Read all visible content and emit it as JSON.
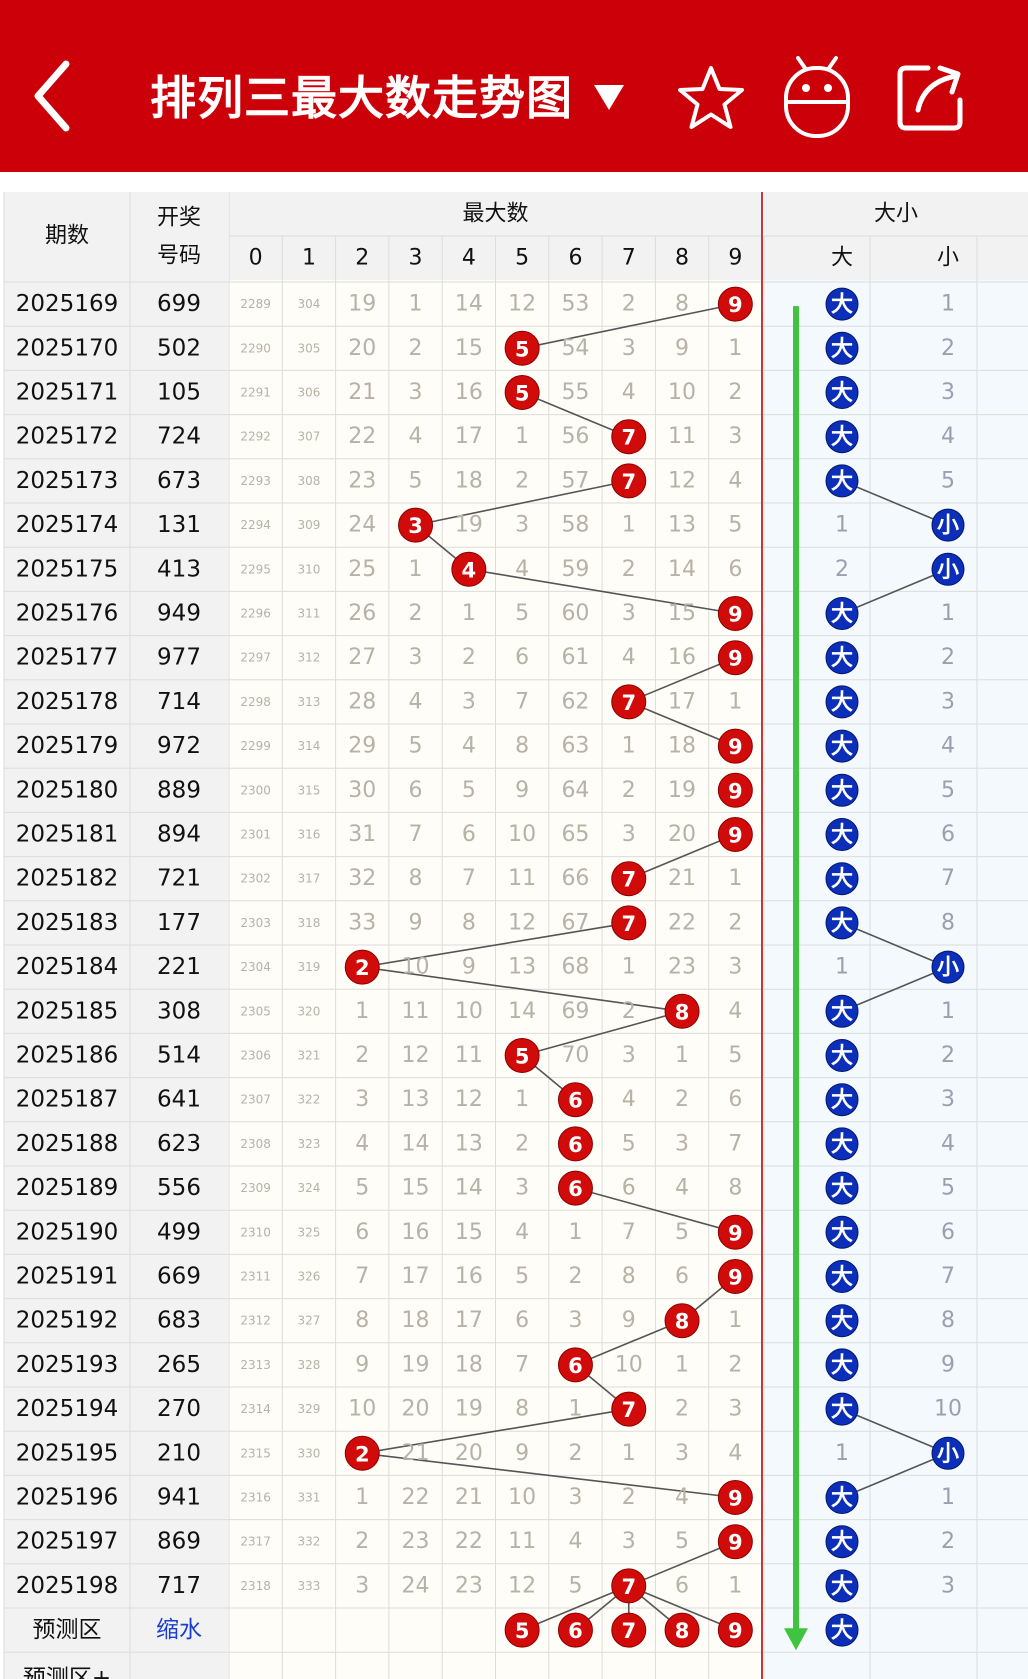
{
  "header": {
    "title": "排列三最大数走势图",
    "icons": [
      "back-arrow-icon",
      "dropdown-caret-icon",
      "star-icon",
      "robot-icon",
      "share-icon"
    ]
  },
  "table": {
    "headers": {
      "period": "期数",
      "draw_line1": "开奖",
      "draw_line2": "号码",
      "max_group": "最大数",
      "size_group": "大小",
      "digits": [
        "0",
        "1",
        "2",
        "3",
        "4",
        "5",
        "6",
        "7",
        "8",
        "9"
      ],
      "big": "大",
      "small": "小"
    },
    "rows": [
      {
        "period": "2025169",
        "draw": "699",
        "max": 9,
        "miss": [
          "2289",
          "304",
          "19",
          "1",
          "14",
          "12",
          "53",
          "2",
          "8",
          ""
        ],
        "size": "大",
        "small_miss": "1"
      },
      {
        "period": "2025170",
        "draw": "502",
        "max": 5,
        "miss": [
          "2290",
          "305",
          "20",
          "2",
          "15",
          "",
          "54",
          "3",
          "9",
          "1"
        ],
        "size": "大",
        "small_miss": "2"
      },
      {
        "period": "2025171",
        "draw": "105",
        "max": 5,
        "miss": [
          "2291",
          "306",
          "21",
          "3",
          "16",
          "",
          "55",
          "4",
          "10",
          "2"
        ],
        "size": "大",
        "small_miss": "3"
      },
      {
        "period": "2025172",
        "draw": "724",
        "max": 7,
        "miss": [
          "2292",
          "307",
          "22",
          "4",
          "17",
          "1",
          "56",
          "",
          "11",
          "3"
        ],
        "size": "大",
        "small_miss": "4"
      },
      {
        "period": "2025173",
        "draw": "673",
        "max": 7,
        "miss": [
          "2293",
          "308",
          "23",
          "5",
          "18",
          "2",
          "57",
          "",
          "12",
          "4"
        ],
        "size": "大",
        "small_miss": "5"
      },
      {
        "period": "2025174",
        "draw": "131",
        "max": 3,
        "miss": [
          "2294",
          "309",
          "24",
          "",
          "19",
          "3",
          "58",
          "1",
          "13",
          "5"
        ],
        "size": "小",
        "big_miss": "1"
      },
      {
        "period": "2025175",
        "draw": "413",
        "max": 4,
        "miss": [
          "2295",
          "310",
          "25",
          "1",
          "",
          "4",
          "59",
          "2",
          "14",
          "6"
        ],
        "size": "小",
        "big_miss": "2"
      },
      {
        "period": "2025176",
        "draw": "949",
        "max": 9,
        "miss": [
          "2296",
          "311",
          "26",
          "2",
          "1",
          "5",
          "60",
          "3",
          "15",
          ""
        ],
        "size": "大",
        "small_miss": "1"
      },
      {
        "period": "2025177",
        "draw": "977",
        "max": 9,
        "miss": [
          "2297",
          "312",
          "27",
          "3",
          "2",
          "6",
          "61",
          "4",
          "16",
          ""
        ],
        "size": "大",
        "small_miss": "2"
      },
      {
        "period": "2025178",
        "draw": "714",
        "max": 7,
        "miss": [
          "2298",
          "313",
          "28",
          "4",
          "3",
          "7",
          "62",
          "",
          "17",
          "1"
        ],
        "size": "大",
        "small_miss": "3"
      },
      {
        "period": "2025179",
        "draw": "972",
        "max": 9,
        "miss": [
          "2299",
          "314",
          "29",
          "5",
          "4",
          "8",
          "63",
          "1",
          "18",
          ""
        ],
        "size": "大",
        "small_miss": "4"
      },
      {
        "period": "2025180",
        "draw": "889",
        "max": 9,
        "miss": [
          "2300",
          "315",
          "30",
          "6",
          "5",
          "9",
          "64",
          "2",
          "19",
          ""
        ],
        "size": "大",
        "small_miss": "5"
      },
      {
        "period": "2025181",
        "draw": "894",
        "max": 9,
        "miss": [
          "2301",
          "316",
          "31",
          "7",
          "6",
          "10",
          "65",
          "3",
          "20",
          ""
        ],
        "size": "大",
        "small_miss": "6"
      },
      {
        "period": "2025182",
        "draw": "721",
        "max": 7,
        "miss": [
          "2302",
          "317",
          "32",
          "8",
          "7",
          "11",
          "66",
          "",
          "21",
          "1"
        ],
        "size": "大",
        "small_miss": "7"
      },
      {
        "period": "2025183",
        "draw": "177",
        "max": 7,
        "miss": [
          "2303",
          "318",
          "33",
          "9",
          "8",
          "12",
          "67",
          "",
          "22",
          "2"
        ],
        "size": "大",
        "small_miss": "8"
      },
      {
        "period": "2025184",
        "draw": "221",
        "max": 2,
        "miss": [
          "2304",
          "319",
          "",
          "10",
          "9",
          "13",
          "68",
          "1",
          "23",
          "3"
        ],
        "size": "小",
        "big_miss": "1"
      },
      {
        "period": "2025185",
        "draw": "308",
        "max": 8,
        "miss": [
          "2305",
          "320",
          "1",
          "11",
          "10",
          "14",
          "69",
          "2",
          "",
          "4"
        ],
        "size": "大",
        "small_miss": "1"
      },
      {
        "period": "2025186",
        "draw": "514",
        "max": 5,
        "miss": [
          "2306",
          "321",
          "2",
          "12",
          "11",
          "",
          "70",
          "3",
          "1",
          "5"
        ],
        "size": "大",
        "small_miss": "2"
      },
      {
        "period": "2025187",
        "draw": "641",
        "max": 6,
        "miss": [
          "2307",
          "322",
          "3",
          "13",
          "12",
          "1",
          "",
          "4",
          "2",
          "6"
        ],
        "size": "大",
        "small_miss": "3"
      },
      {
        "period": "2025188",
        "draw": "623",
        "max": 6,
        "miss": [
          "2308",
          "323",
          "4",
          "14",
          "13",
          "2",
          "",
          "5",
          "3",
          "7"
        ],
        "size": "大",
        "small_miss": "4"
      },
      {
        "period": "2025189",
        "draw": "556",
        "max": 6,
        "miss": [
          "2309",
          "324",
          "5",
          "15",
          "14",
          "3",
          "",
          "6",
          "4",
          "8"
        ],
        "size": "大",
        "small_miss": "5"
      },
      {
        "period": "2025190",
        "draw": "499",
        "max": 9,
        "miss": [
          "2310",
          "325",
          "6",
          "16",
          "15",
          "4",
          "1",
          "7",
          "5",
          ""
        ],
        "size": "大",
        "small_miss": "6"
      },
      {
        "period": "2025191",
        "draw": "669",
        "max": 9,
        "miss": [
          "2311",
          "326",
          "7",
          "17",
          "16",
          "5",
          "2",
          "8",
          "6",
          ""
        ],
        "size": "大",
        "small_miss": "7"
      },
      {
        "period": "2025192",
        "draw": "683",
        "max": 8,
        "miss": [
          "2312",
          "327",
          "8",
          "18",
          "17",
          "6",
          "3",
          "9",
          "",
          "1"
        ],
        "size": "大",
        "small_miss": "8"
      },
      {
        "period": "2025193",
        "draw": "265",
        "max": 6,
        "miss": [
          "2313",
          "328",
          "9",
          "19",
          "18",
          "7",
          "",
          "10",
          "1",
          "2"
        ],
        "size": "大",
        "small_miss": "9"
      },
      {
        "period": "2025194",
        "draw": "270",
        "max": 7,
        "miss": [
          "2314",
          "329",
          "10",
          "20",
          "19",
          "8",
          "1",
          "",
          "2",
          "3"
        ],
        "size": "大",
        "small_miss": "10"
      },
      {
        "period": "2025195",
        "draw": "210",
        "max": 2,
        "miss": [
          "2315",
          "330",
          "",
          "21",
          "20",
          "9",
          "2",
          "1",
          "3",
          "4"
        ],
        "size": "小",
        "big_miss": "1"
      },
      {
        "period": "2025196",
        "draw": "941",
        "max": 9,
        "miss": [
          "2316",
          "331",
          "1",
          "22",
          "21",
          "10",
          "3",
          "2",
          "4",
          ""
        ],
        "size": "大",
        "small_miss": "1"
      },
      {
        "period": "2025197",
        "draw": "869",
        "max": 9,
        "miss": [
          "2317",
          "332",
          "2",
          "23",
          "22",
          "11",
          "4",
          "3",
          "5",
          ""
        ],
        "size": "大",
        "small_miss": "2"
      },
      {
        "period": "2025198",
        "draw": "717",
        "max": 7,
        "miss": [
          "2318",
          "333",
          "3",
          "24",
          "23",
          "12",
          "5",
          "",
          "6",
          "1"
        ],
        "size": "大",
        "small_miss": "3"
      }
    ],
    "prediction": {
      "label": "预测区",
      "shrink": "缩水",
      "balls": [
        "5",
        "6",
        "7",
        "8",
        "9"
      ],
      "size": "大"
    },
    "prediction_plus": {
      "label": "预测区+"
    }
  },
  "colors": {
    "header_bg": "#cc0008",
    "ball_red": "#d10a0a",
    "ball_blue": "#0b2fb8",
    "trend_arrow": "#3ec43e",
    "shrink_link": "#1a3fd1"
  }
}
